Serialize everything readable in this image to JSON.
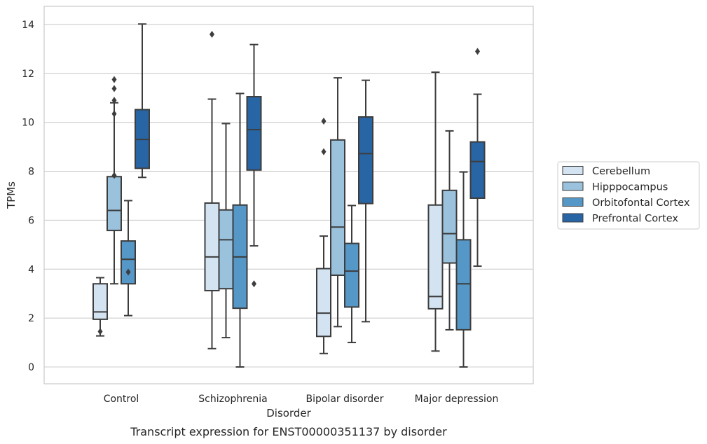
{
  "chart_data": {
    "type": "box",
    "caption": "Transcript expression for ENST00000351137 by disorder",
    "xlabel": "Disorder",
    "ylabel": "TPMs",
    "ylim": [
      -0.7,
      14.7
    ],
    "yticks": [
      "0",
      "2",
      "4",
      "6",
      "8",
      "10",
      "12",
      "14"
    ],
    "grid": "horizontal",
    "legend_position": "right",
    "categories": [
      "Control",
      "Schizophrenia",
      "Bipolar disorder",
      "Major depression"
    ],
    "series": [
      {
        "name": "Cerebellum",
        "color": "#d3e3f2",
        "boxes": [
          {
            "whislo": 1.27,
            "q1": 1.95,
            "med": 2.25,
            "q3": 3.4,
            "whishi": 3.65,
            "fliers": [
              1.45
            ]
          },
          {
            "whislo": 0.75,
            "q1": 3.12,
            "med": 4.5,
            "q3": 6.7,
            "whishi": 10.95,
            "fliers": [
              13.6
            ]
          },
          {
            "whislo": 0.55,
            "q1": 1.25,
            "med": 2.2,
            "q3": 4.02,
            "whishi": 5.35,
            "fliers": [
              8.8,
              10.05
            ]
          },
          {
            "whislo": 0.65,
            "q1": 2.38,
            "med": 2.88,
            "q3": 6.62,
            "whishi": 12.05,
            "fliers": []
          }
        ]
      },
      {
        "name": "Hipppocampus",
        "color": "#9ac2dd",
        "boxes": [
          {
            "whislo": 3.4,
            "q1": 5.58,
            "med": 6.4,
            "q3": 7.78,
            "whishi": 10.8,
            "fliers": [
              7.83,
              10.35,
              10.9,
              11.38,
              11.75
            ]
          },
          {
            "whislo": 1.2,
            "q1": 3.2,
            "med": 5.2,
            "q3": 6.42,
            "whishi": 9.95,
            "fliers": []
          },
          {
            "whislo": 1.65,
            "q1": 3.75,
            "med": 5.72,
            "q3": 9.28,
            "whishi": 11.82,
            "fliers": []
          },
          {
            "whislo": 1.52,
            "q1": 4.25,
            "med": 5.45,
            "q3": 7.22,
            "whishi": 9.65,
            "fliers": []
          }
        ]
      },
      {
        "name": "Orbitofontal Cortex",
        "color": "#5597c6",
        "boxes": [
          {
            "whislo": 2.1,
            "q1": 3.4,
            "med": 4.4,
            "q3": 5.15,
            "whishi": 6.8,
            "fliers": [
              3.88
            ]
          },
          {
            "whislo": 0.0,
            "q1": 2.4,
            "med": 4.5,
            "q3": 6.62,
            "whishi": 11.18,
            "fliers": []
          },
          {
            "whislo": 1.0,
            "q1": 2.45,
            "med": 3.92,
            "q3": 5.05,
            "whishi": 6.6,
            "fliers": []
          },
          {
            "whislo": 0.0,
            "q1": 1.52,
            "med": 3.4,
            "q3": 5.2,
            "whishi": 7.97,
            "fliers": []
          }
        ]
      },
      {
        "name": "Prefrontal Cortex",
        "color": "#2865a5",
        "boxes": [
          {
            "whislo": 7.75,
            "q1": 8.12,
            "med": 9.3,
            "q3": 10.52,
            "whishi": 14.02,
            "fliers": []
          },
          {
            "whislo": 4.95,
            "q1": 8.05,
            "med": 9.7,
            "q3": 11.05,
            "whishi": 13.18,
            "fliers": [
              3.4
            ]
          },
          {
            "whislo": 1.85,
            "q1": 6.68,
            "med": 8.72,
            "q3": 10.22,
            "whishi": 11.72,
            "fliers": []
          },
          {
            "whislo": 4.12,
            "q1": 6.9,
            "med": 8.4,
            "q3": 9.2,
            "whishi": 11.15,
            "fliers": [
              12.9
            ]
          }
        ]
      }
    ]
  }
}
